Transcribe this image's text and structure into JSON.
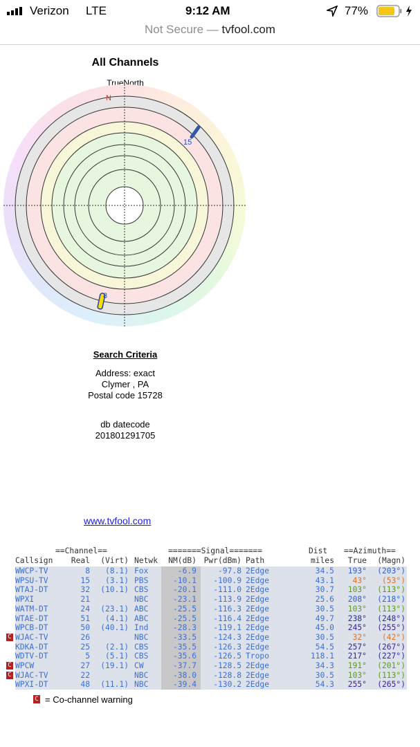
{
  "status": {
    "carrier": "Verizon",
    "network": "LTE",
    "time": "9:12 AM",
    "battery": "77%"
  },
  "browser": {
    "security": "Not Secure —",
    "domain": "tvfool.com"
  },
  "radar": {
    "title": "All Channels",
    "north_label": "TrueNorth",
    "north_marker": "N",
    "markers": [
      "15",
      "8"
    ]
  },
  "criteria": {
    "title": "Search Criteria",
    "lines": [
      "Address: exact",
      "Clymer , PA",
      "Postal code 15728"
    ],
    "datecode_label": "db datecode",
    "datecode": "201801291705"
  },
  "link": "www.tvfool.com",
  "table": {
    "group_headers": [
      "==Channel==",
      "=======Signal=======",
      "Dist",
      "==Azimuth=="
    ],
    "headers": [
      "Callsign",
      "Real",
      "(Virt)",
      "Netwk",
      "NM(dB)",
      "Pwr(dBm)",
      "Path",
      "miles",
      "True",
      "(Magn)"
    ],
    "rows": [
      {
        "callsign": "WWCP-TV",
        "real": "8",
        "virt": "(8.1)",
        "netwk": "Fox",
        "nm": "-6.9",
        "pwr": "-97.8",
        "path": "2Edge",
        "dist": "34.5",
        "true": "193°",
        "magn": "(203°)",
        "azimuth_color": "#2f5fd0"
      },
      {
        "callsign": "WPSU-TV",
        "real": "15",
        "virt": "(3.1)",
        "netwk": "PBS",
        "nm": "-10.1",
        "pwr": "-100.9",
        "path": "2Edge",
        "dist": "43.1",
        "true": "43°",
        "magn": "(53°)",
        "azimuth_color": "#e07020"
      },
      {
        "callsign": "WTAJ-DT",
        "real": "32",
        "virt": "(10.1)",
        "netwk": "CBS",
        "nm": "-20.1",
        "pwr": "-111.0",
        "path": "2Edge",
        "dist": "30.7",
        "true": "103°",
        "magn": "(113°)",
        "azimuth_color": "#5a9a20"
      },
      {
        "callsign": "WPXI",
        "real": "21",
        "netwk": "NBC",
        "nm": "-23.1",
        "pwr": "-113.9",
        "path": "2Edge",
        "dist": "25.6",
        "true": "208°",
        "magn": "(218°)",
        "azimuth_color": "#2f5fd0"
      },
      {
        "callsign": "WATM-DT",
        "real": "24",
        "virt": "(23.1)",
        "netwk": "ABC",
        "nm": "-25.5",
        "pwr": "-116.3",
        "path": "2Edge",
        "dist": "30.5",
        "true": "103°",
        "magn": "(113°)",
        "azimuth_color": "#5a9a20"
      },
      {
        "callsign": "WTAE-DT",
        "real": "51",
        "virt": "(4.1)",
        "netwk": "ABC",
        "nm": "-25.5",
        "pwr": "-116.4",
        "path": "2Edge",
        "dist": "49.7",
        "true": "238°",
        "magn": "(248°)",
        "azimuth_color": "#2a2a9a"
      },
      {
        "callsign": "WPCB-DT",
        "real": "50",
        "virt": "(40.1)",
        "netwk": "Ind",
        "nm": "-28.3",
        "pwr": "-119.1",
        "path": "2Edge",
        "dist": "45.0",
        "true": "245°",
        "magn": "(255°)",
        "azimuth_color": "#3a1f9a"
      },
      {
        "callsign": "WJAC-TV",
        "real": "26",
        "netwk": "NBC",
        "nm": "-33.5",
        "pwr": "-124.3",
        "path": "2Edge",
        "dist": "30.5",
        "true": "32°",
        "magn": "(42°)",
        "azimuth_color": "#e07020",
        "co_channel": true
      },
      {
        "callsign": "KDKA-DT",
        "real": "25",
        "virt": "(2.1)",
        "netwk": "CBS",
        "nm": "-35.5",
        "pwr": "-126.3",
        "path": "2Edge",
        "dist": "54.5",
        "true": "257°",
        "magn": "(267°)",
        "azimuth_color": "#3a1f9a"
      },
      {
        "callsign": "WDTV-DT",
        "real": "5",
        "virt": "(5.1)",
        "netwk": "CBS",
        "nm": "-35.6",
        "pwr": "-126.5",
        "path": "Tropo",
        "dist": "118.1",
        "true": "217°",
        "magn": "(227°)",
        "azimuth_color": "#2a2a9a"
      },
      {
        "callsign": "WPCW",
        "real": "27",
        "virt": "(19.1)",
        "netwk": "CW",
        "nm": "-37.7",
        "pwr": "-128.5",
        "path": "2Edge",
        "dist": "34.3",
        "true": "191°",
        "magn": "(201°)",
        "azimuth_color": "#5a9a20",
        "co_channel": true
      },
      {
        "callsign": "WJAC-TV",
        "real": "22",
        "netwk": "NBC",
        "nm": "-38.0",
        "pwr": "-128.8",
        "path": "2Edge",
        "dist": "30.5",
        "true": "103°",
        "magn": "(113°)",
        "azimuth_color": "#5a9a20",
        "co_channel": true
      },
      {
        "callsign": "WPXI-DT",
        "real": "48",
        "virt": "(11.1)",
        "netwk": "NBC",
        "nm": "-39.4",
        "pwr": "-130.2",
        "path": "2Edge",
        "dist": "54.3",
        "true": "255°",
        "magn": "(265°)",
        "azimuth_color": "#3a1f9a"
      }
    ],
    "warning_icon": "C",
    "legend": "= Co-channel warning"
  }
}
